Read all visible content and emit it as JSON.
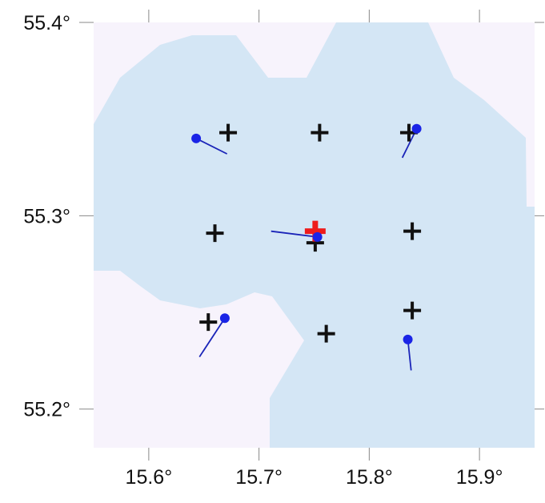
{
  "map": {
    "x_axis": {
      "ticks": [
        15.6,
        15.7,
        15.8,
        15.9
      ],
      "tick_labels": [
        "15.6°",
        "15.7°",
        "15.8°",
        "15.9°"
      ],
      "range": [
        15.55,
        15.95
      ]
    },
    "y_axis": {
      "ticks": [
        55.2,
        55.3,
        55.4
      ],
      "tick_labels": [
        "55.2°",
        "55.3°",
        "55.4°"
      ],
      "range": [
        55.18,
        55.4
      ]
    },
    "colors": {
      "water": "#d4e6f5",
      "land": "#f7f3fc",
      "station_marker": "#111111",
      "target_marker": "#ee1c1c",
      "vector_point": "#1a24e6",
      "vector_line": "#1a24b8"
    },
    "stations": [
      {
        "lon": 15.672,
        "lat": 55.343
      },
      {
        "lon": 15.755,
        "lat": 55.343
      },
      {
        "lon": 15.836,
        "lat": 55.343
      },
      {
        "lon": 15.66,
        "lat": 55.291
      },
      {
        "lon": 15.751,
        "lat": 55.286
      },
      {
        "lon": 15.839,
        "lat": 55.292
      },
      {
        "lon": 15.654,
        "lat": 55.245
      },
      {
        "lon": 15.761,
        "lat": 55.239
      },
      {
        "lon": 15.839,
        "lat": 55.251
      }
    ],
    "target": {
      "lon": 15.751,
      "lat": 55.292
    },
    "vectors": [
      {
        "lon": 15.643,
        "lat": 55.34,
        "end_lon": 15.671,
        "end_lat": 55.332
      },
      {
        "lon": 15.843,
        "lat": 55.345,
        "end_lon": 15.83,
        "end_lat": 55.33
      },
      {
        "lon": 15.753,
        "lat": 55.289,
        "end_lon": 15.711,
        "end_lat": 55.292
      },
      {
        "lon": 15.669,
        "lat": 55.247,
        "end_lon": 15.646,
        "end_lat": 55.227
      },
      {
        "lon": 15.835,
        "lat": 55.236,
        "end_lon": 15.838,
        "end_lat": 55.22
      }
    ]
  }
}
